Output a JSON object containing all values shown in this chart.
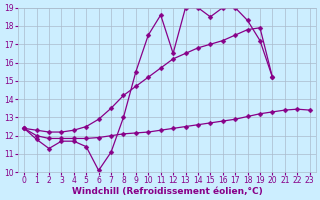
{
  "xlabel": "Windchill (Refroidissement éolien,°C)",
  "background_color": "#cceeff",
  "grid_color": "#aabbcc",
  "line_color": "#880088",
  "xlim": [
    -0.5,
    23.5
  ],
  "ylim": [
    10,
    19
  ],
  "xticks": [
    0,
    1,
    2,
    3,
    4,
    5,
    6,
    7,
    8,
    9,
    10,
    11,
    12,
    13,
    14,
    15,
    16,
    17,
    18,
    19,
    20,
    21,
    22,
    23
  ],
  "yticks": [
    10,
    11,
    12,
    13,
    14,
    15,
    16,
    17,
    18,
    19
  ],
  "line1_y": [
    12.4,
    11.8,
    11.3,
    11.7,
    11.7,
    11.4,
    10.1,
    11.1,
    13.0,
    15.5,
    17.5,
    18.6,
    16.5,
    19.0,
    19.0,
    18.5,
    19.0,
    19.0,
    18.3,
    17.2,
    15.2,
    null,
    null,
    null
  ],
  "line2_y": [
    12.4,
    12.0,
    11.85,
    11.85,
    11.85,
    11.85,
    11.9,
    12.0,
    12.1,
    12.15,
    12.2,
    12.3,
    12.4,
    12.5,
    12.6,
    12.7,
    12.8,
    12.9,
    13.05,
    13.2,
    13.3,
    13.4,
    13.45,
    13.4
  ],
  "line3_y": [
    12.4,
    12.3,
    12.2,
    12.2,
    12.3,
    12.5,
    12.9,
    13.5,
    14.2,
    14.7,
    15.2,
    15.7,
    16.2,
    16.5,
    16.8,
    17.0,
    17.2,
    17.5,
    17.8,
    17.9,
    15.2,
    null,
    null,
    null
  ],
  "marker_size": 2.5,
  "line_width": 0.9,
  "tick_fontsize": 5.5,
  "label_fontsize": 6.5
}
